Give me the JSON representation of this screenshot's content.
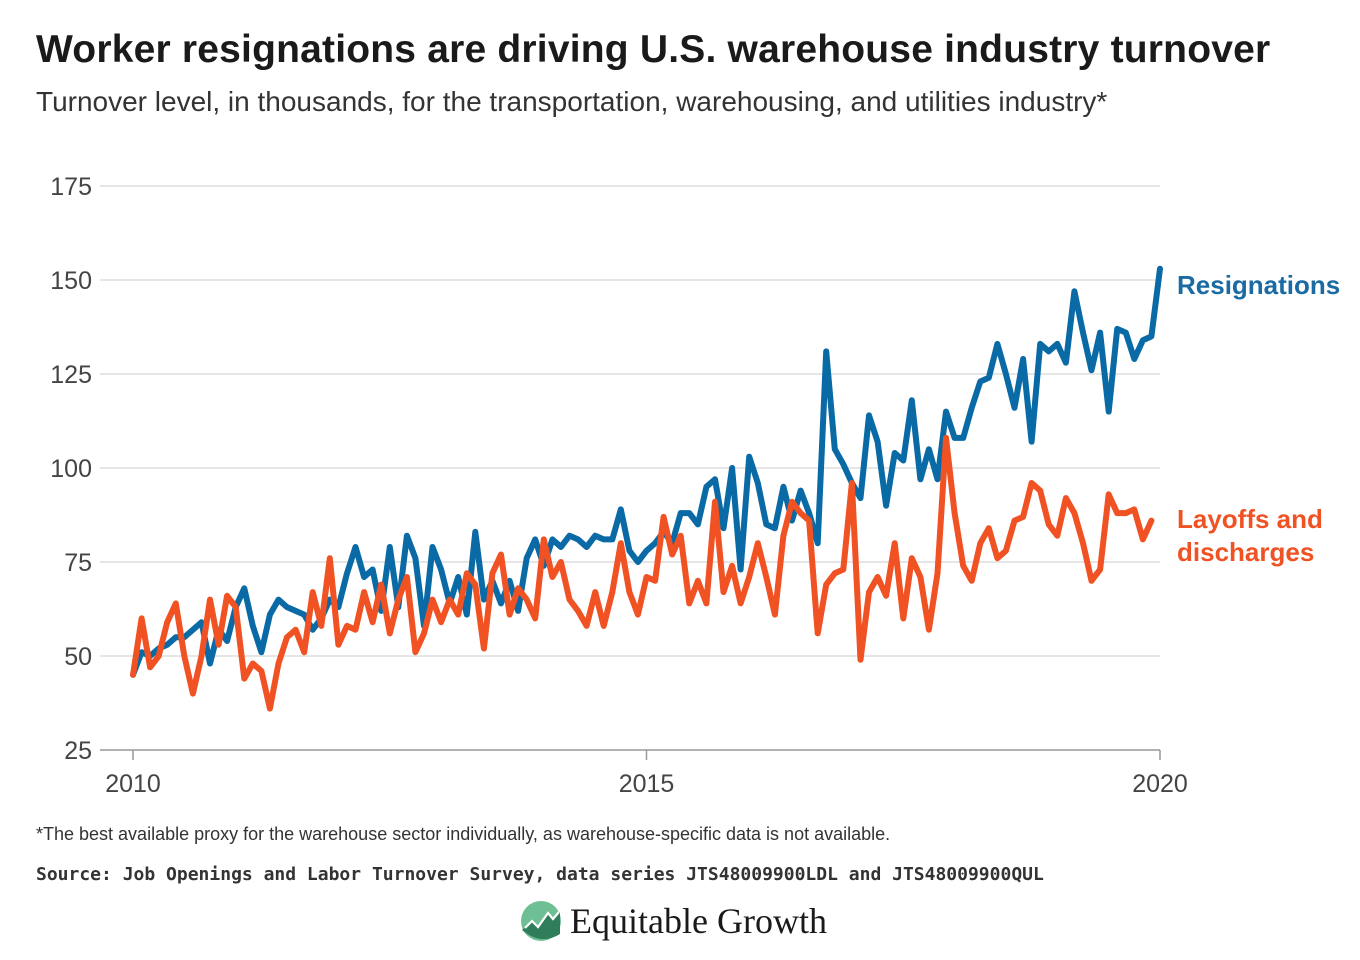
{
  "header": {
    "title": "Worker resignations are driving U.S. warehouse industry turnover",
    "subtitle": "Turnover level, in thousands, for the transportation, warehousing, and utilities industry*"
  },
  "footer": {
    "footnote": "*The best available proxy for the warehouse sector individually, as warehouse-specific data is not available.",
    "source": "Source: Job Openings and Labor Turnover Survey, data series JTS48009900LDL and JTS48009900QUL",
    "brand_name": "Equitable Growth",
    "brand_icon": "line-chart-circle-icon"
  },
  "chart_data": {
    "type": "line",
    "title": "Worker resignations are driving U.S. warehouse industry turnover",
    "subtitle": "Turnover level, in thousands, for the transportation, warehousing, and utilities industry*",
    "xlabel": "",
    "ylabel": "",
    "x_ticks": [
      "2010",
      "2015",
      "2020"
    ],
    "y_ticks": [
      25,
      50,
      75,
      100,
      125,
      150,
      175
    ],
    "xlim": [
      2010,
      2020
    ],
    "ylim": [
      25,
      175
    ],
    "grid": true,
    "legend": "direct labels at right end of lines",
    "series": [
      {
        "name": "Resignations",
        "color": "#0a6aa6",
        "label_color": "#1a6aa3",
        "x_start": 2010,
        "step_months": 1,
        "values": [
          45,
          51,
          50,
          52,
          53,
          55,
          55,
          57,
          59,
          48,
          57,
          54,
          63,
          68,
          58,
          51,
          61,
          65,
          63,
          62,
          61,
          57,
          60,
          65,
          63,
          72,
          79,
          71,
          73,
          62,
          79,
          63,
          82,
          76,
          58,
          79,
          73,
          64,
          71,
          61,
          83,
          65,
          70,
          64,
          70,
          62,
          76,
          81,
          74,
          81,
          79,
          82,
          81,
          79,
          82,
          81,
          81,
          89,
          78,
          75,
          78,
          80,
          83,
          80,
          88,
          88,
          85,
          95,
          97,
          84,
          100,
          73,
          103,
          96,
          85,
          84,
          95,
          86,
          94,
          88,
          80,
          131,
          105,
          101,
          96,
          92,
          114,
          107,
          90,
          104,
          102,
          118,
          97,
          105,
          97,
          115,
          108,
          108,
          116,
          123,
          124,
          133,
          125,
          116,
          129,
          107,
          133,
          131,
          133,
          128,
          147,
          136,
          126,
          136,
          115,
          137,
          136,
          129,
          134,
          135,
          153
        ],
        "end_label": "Resignations"
      },
      {
        "name": "Layoffs and discharges",
        "color": "#f05223",
        "label_color": "#f05223",
        "x_start": 2010,
        "step_months": 1,
        "values": [
          45,
          60,
          47,
          50,
          59,
          64,
          50,
          40,
          50,
          65,
          53,
          66,
          63,
          44,
          48,
          46,
          36,
          48,
          55,
          57,
          51,
          67,
          58,
          76,
          53,
          58,
          57,
          67,
          59,
          69,
          56,
          65,
          71,
          51,
          56,
          65,
          59,
          65,
          61,
          72,
          69,
          52,
          72,
          77,
          61,
          68,
          65,
          60,
          81,
          71,
          75,
          65,
          62,
          58,
          67,
          58,
          67,
          80,
          67,
          61,
          71,
          70,
          87,
          77,
          82,
          64,
          70,
          64,
          91,
          67,
          74,
          64,
          71,
          80,
          71,
          61,
          82,
          91,
          88,
          86,
          56,
          69,
          72,
          73,
          96,
          49,
          67,
          71,
          66,
          80,
          60,
          76,
          71,
          57,
          72,
          108,
          88,
          74,
          70,
          80,
          84,
          76,
          78,
          86,
          87,
          96,
          94,
          85,
          82,
          92,
          88,
          80,
          70,
          73,
          93,
          88,
          88,
          89,
          81,
          86
        ],
        "end_label_lines": [
          "Layoffs and",
          "discharges"
        ]
      }
    ]
  }
}
